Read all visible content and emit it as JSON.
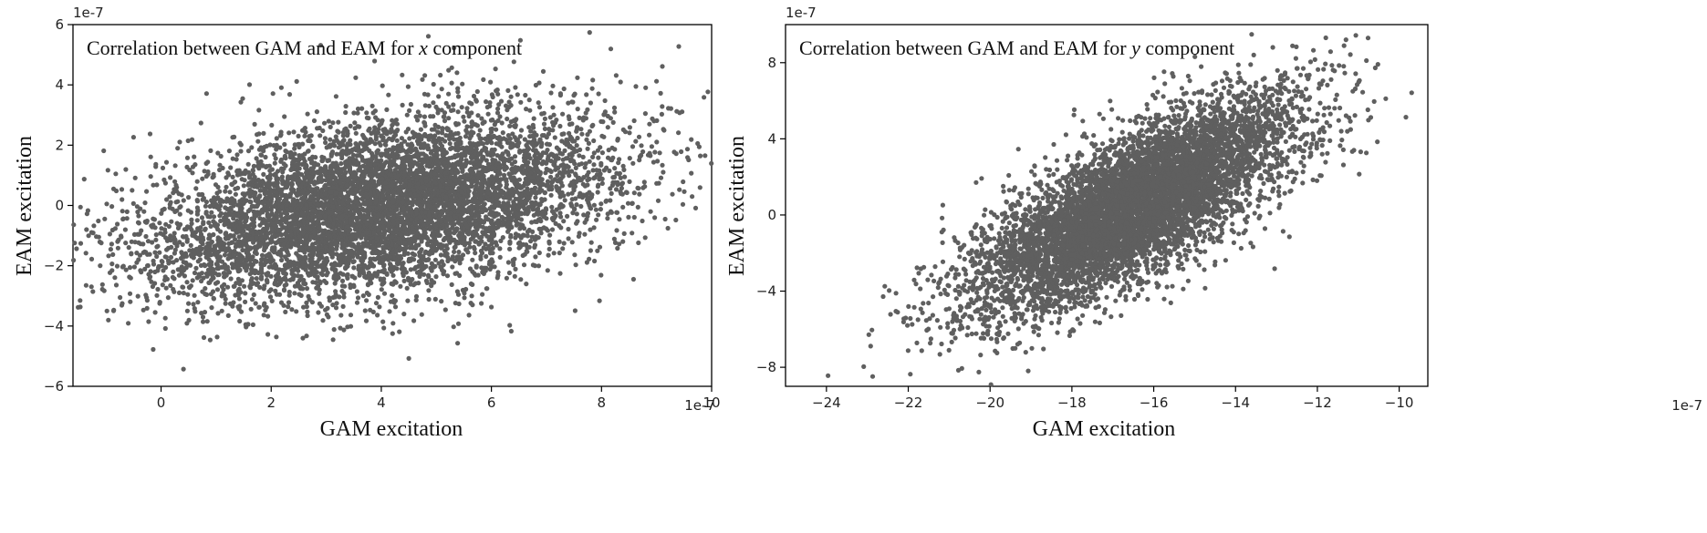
{
  "chart_data": [
    {
      "type": "scatter",
      "title": {
        "prefix": "Correlation between GAM and EAM for ",
        "variable": "x",
        "suffix": " component"
      },
      "xlabel": "GAM excitation",
      "ylabel": "EAM excitation",
      "x_offset_label": "1e-7",
      "y_offset_label": "1e-7",
      "xlim": [
        -1.6,
        10.0
      ],
      "ylim": [
        -6,
        6
      ],
      "xticks": [
        0,
        2,
        4,
        6,
        8,
        10
      ],
      "yticks": [
        -6,
        -4,
        -2,
        0,
        2,
        4,
        6
      ],
      "point_color": "#5f5f5f",
      "grid": false,
      "distribution": {
        "n_points": 7000,
        "x_mean": 4.0,
        "x_std": 2.1,
        "y_mean": 0.0,
        "y_std": 1.5,
        "correlation": 0.42,
        "seed": 7
      }
    },
    {
      "type": "scatter",
      "title": {
        "prefix": "Correlation between GAM and EAM for ",
        "variable": "y",
        "suffix": " component"
      },
      "xlabel": "GAM excitation",
      "ylabel": "EAM excitation",
      "x_offset_label": "1e-7",
      "y_offset_label": "1e-7",
      "xlim": [
        -25.0,
        -9.3
      ],
      "ylim": [
        -9,
        10
      ],
      "xticks": [
        -24,
        -22,
        -20,
        -18,
        -16,
        -14,
        -12,
        -10
      ],
      "yticks": [
        -8,
        -4,
        0,
        4,
        8
      ],
      "point_color": "#5f5f5f",
      "grid": false,
      "distribution": {
        "n_points": 7000,
        "x_mean": -16.5,
        "x_std": 2.0,
        "y_mean": 0.5,
        "y_std": 2.8,
        "correlation": 0.75,
        "seed": 13
      }
    }
  ]
}
